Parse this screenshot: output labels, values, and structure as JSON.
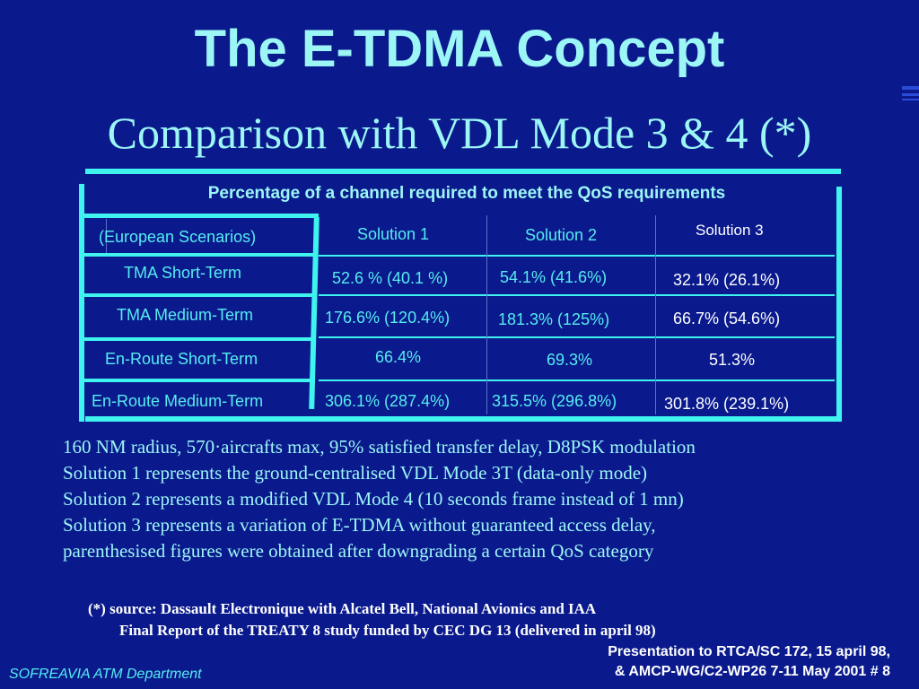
{
  "slide": {
    "title": "The E-TDMA Concept",
    "subtitle": "Comparison with VDL Mode 3 & 4 (*)"
  },
  "table": {
    "caption": "Percentage of a channel required to meet the QoS requirements",
    "corner": "(European Scenarios)",
    "columns": [
      "Solution 1",
      "Solution 2",
      "Solution 3"
    ],
    "rows": [
      {
        "label": "TMA Short-Term",
        "values": [
          "52.6 % (40.1 %)",
          "54.1% (41.6%)",
          "32.1% (26.1%)"
        ]
      },
      {
        "label": "TMA Medium-Term",
        "values": [
          "176.6% (120.4%)",
          "181.3% (125%)",
          "66.7% (54.6%)"
        ]
      },
      {
        "label": "En-Route Short-Term",
        "values": [
          "66.4%",
          "69.3%",
          "51.3%"
        ]
      },
      {
        "label": "En-Route Medium-Term",
        "values": [
          "306.1% (287.4%)",
          "315.5% (296.8%)",
          "301.8% (239.1%)"
        ]
      }
    ]
  },
  "notes": [
    "160 NM radius, 570·aircrafts max, 95% satisfied transfer delay, D8PSK modulation",
    "Solution 1 represents the ground-centralised VDL Mode 3T (data-only mode)",
    "Solution 2 represents a modified VDL Mode 4 (10 seconds frame instead of 1 mn)",
    "Solution 3 represents a variation of E-TDMA without guaranteed access delay,",
    "parenthesised figures were obtained after downgrading a certain QoS category"
  ],
  "source": {
    "line1": "(*) source: Dassault Electronique with Alcatel Bell, National Avionics and IAA",
    "line2": "Final Report of the TREATY 8 study funded by CEC DG 13 (delivered in april 98)"
  },
  "footer": {
    "left": "SOFREAVIA ATM Department",
    "right_line1": "Presentation to RTCA/SC 172, 15 april 98,",
    "right_line2": "& AMCP-WG/C2-WP26 7-11 May 2001 # 8"
  }
}
